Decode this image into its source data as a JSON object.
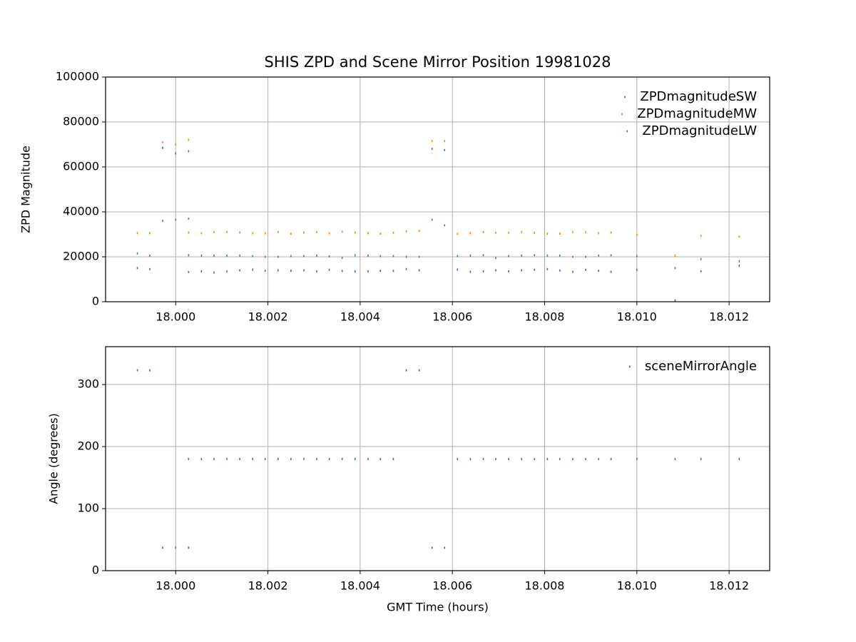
{
  "chart_data": [
    {
      "type": "scatter",
      "title": "SHIS ZPD and Scene Mirror Position 19981028",
      "ylabel": "ZPD Magnitude",
      "xlim": [
        17.99848,
        18.01288
      ],
      "ylim": [
        0,
        100000
      ],
      "xticks": [
        {
          "value": 18,
          "label": "18.000"
        },
        {
          "value": 18.002,
          "label": "18.002"
        },
        {
          "value": 18.004,
          "label": "18.004"
        },
        {
          "value": 18.006,
          "label": "18.006"
        },
        {
          "value": 18.008,
          "label": "18.008"
        },
        {
          "value": 18.01,
          "label": "18.010"
        },
        {
          "value": 18.012,
          "label": "18.012"
        }
      ],
      "yticks": [
        0,
        20000,
        40000,
        60000,
        80000,
        100000
      ],
      "grid": true,
      "legend": "upper right",
      "x": [
        17.99917,
        17.99944,
        17.99972,
        18,
        18.00028,
        18.00028,
        18.00056,
        18.00083,
        18.00111,
        18.00139,
        18.00167,
        18.00194,
        18.00222,
        18.0025,
        18.00278,
        18.00306,
        18.00333,
        18.00361,
        18.00389,
        18.00417,
        18.00444,
        18.00472,
        18.005,
        18.00528,
        18.00556,
        18.00583,
        18.00611,
        18.00639,
        18.00667,
        18.00694,
        18.00722,
        18.0075,
        18.00778,
        18.00806,
        18.00833,
        18.00861,
        18.00889,
        18.00917,
        18.00944,
        18.01,
        18.01083,
        18.01139,
        18.01222
      ],
      "series": [
        {
          "name": "ZPDmagnitudeSW",
          "color": "#1f77b4",
          "values": [
            15000,
            14500,
            68500,
            66000,
            67000,
            13200,
            13500,
            13000,
            13500,
            14000,
            14300,
            13800,
            14000,
            13800,
            14000,
            13500,
            14200,
            13700,
            13500,
            13500,
            13800,
            13700,
            14500,
            14000,
            68000,
            67500,
            14300,
            13300,
            13500,
            14000,
            13500,
            14000,
            14200,
            14500,
            13900,
            13300,
            14200,
            13800,
            13300,
            14200,
            600,
            13500,
            16000
          ]
        },
        {
          "name": "ZPDmagnitudeMW",
          "color": "#ff7f0e",
          "values": [
            30500,
            30500,
            71000,
            70000,
            72000,
            30800,
            30500,
            31000,
            31000,
            30800,
            30500,
            30500,
            31000,
            30300,
            30800,
            31000,
            30500,
            31200,
            30800,
            30500,
            30300,
            30700,
            31200,
            31500,
            71500,
            71500,
            30200,
            30500,
            31000,
            30700,
            30700,
            31000,
            30700,
            30300,
            30300,
            31000,
            31000,
            30500,
            30800,
            29700,
            20500,
            29300,
            29000
          ]
        },
        {
          "name": "ZPDmagnitudeLW",
          "color": "#2ca02c",
          "values": [
            21500,
            20500,
            36000,
            36500,
            37000,
            20700,
            20500,
            20500,
            20500,
            20500,
            20300,
            20000,
            20000,
            20300,
            20300,
            20500,
            20200,
            19500,
            20700,
            20500,
            20300,
            20300,
            20000,
            20000,
            36500,
            34000,
            20300,
            20500,
            20700,
            19500,
            20300,
            20500,
            20700,
            20500,
            20500,
            20000,
            20000,
            20500,
            20700,
            20300,
            15000,
            19000,
            18000
          ]
        }
      ]
    },
    {
      "type": "scatter",
      "ylabel": "Angle (degrees)",
      "xlabel": "GMT Time (hours)",
      "xlim": [
        17.99848,
        18.01288
      ],
      "ylim": [
        0,
        361
      ],
      "xticks": [
        {
          "value": 18,
          "label": "18.000"
        },
        {
          "value": 18.002,
          "label": "18.002"
        },
        {
          "value": 18.004,
          "label": "18.004"
        },
        {
          "value": 18.006,
          "label": "18.006"
        },
        {
          "value": 18.008,
          "label": "18.008"
        },
        {
          "value": 18.01,
          "label": "18.010"
        },
        {
          "value": 18.012,
          "label": "18.012"
        }
      ],
      "yticks": [
        0,
        100,
        200,
        300
      ],
      "grid": true,
      "legend": "upper right",
      "x": [
        17.99917,
        17.99944,
        17.99972,
        18,
        18.00028,
        18.00028,
        18.00056,
        18.00083,
        18.00111,
        18.00139,
        18.00167,
        18.00194,
        18.00222,
        18.0025,
        18.00278,
        18.00306,
        18.00333,
        18.00361,
        18.00389,
        18.00417,
        18.00444,
        18.00472,
        18.005,
        18.00528,
        18.00556,
        18.00583,
        18.00611,
        18.00639,
        18.00667,
        18.00694,
        18.00722,
        18.0075,
        18.00778,
        18.00806,
        18.00833,
        18.00861,
        18.00889,
        18.00917,
        18.00944,
        18.01,
        18.01083,
        18.01139,
        18.01222
      ],
      "series": [
        {
          "name": "sceneMirrorAngle",
          "color": "#1f77b4",
          "values": [
            323,
            323,
            37,
            37,
            37,
            180,
            180,
            180,
            180,
            180,
            180,
            180,
            180,
            180,
            180,
            180,
            180,
            180,
            180,
            180,
            180,
            180,
            323,
            323,
            37,
            37,
            180,
            180,
            180,
            180,
            180,
            180,
            180,
            180,
            180,
            180,
            180,
            180,
            180,
            180,
            180,
            180,
            180
          ]
        }
      ]
    }
  ]
}
